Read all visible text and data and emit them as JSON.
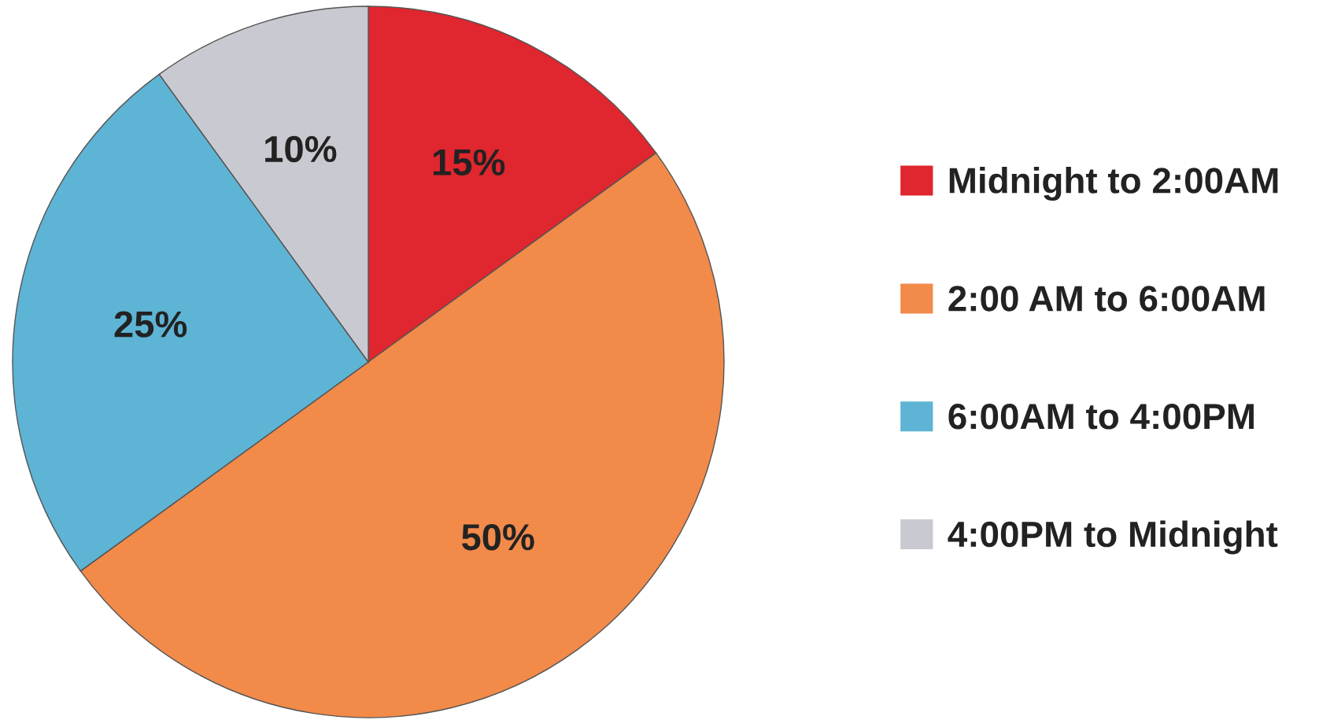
{
  "chart_data": {
    "type": "pie",
    "categories": [
      "Midnight to 2:00AM",
      "2:00 AM to 6:00AM",
      "6:00AM to 4:00PM",
      "4:00PM to Midnight"
    ],
    "values": [
      15,
      50,
      25,
      10
    ],
    "value_labels": [
      "15%",
      "50%",
      "25%",
      "10%"
    ],
    "colors": [
      "#e0262e",
      "#f28a4a",
      "#5eb4d4",
      "#c9c9d1"
    ],
    "legend": "right"
  }
}
